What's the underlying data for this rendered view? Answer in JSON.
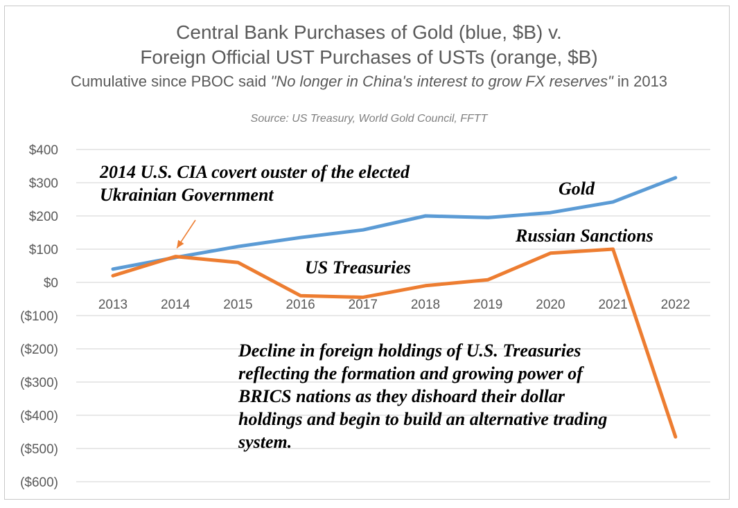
{
  "title": {
    "line1": "Central Bank Purchases of Gold (blue, $B) v.",
    "line2": "Foreign Official UST Purchases of USTs (orange, $B)",
    "subtitle_prefix": "Cumulative since PBOC said ",
    "subtitle_quote": "\"No longer in China's interest to grow FX reserves\"",
    "subtitle_suffix": " in 2013",
    "source": "Source: US Treasury, World Gold Council, FFTT"
  },
  "annotations": {
    "cia": "2014 U.S. CIA covert ouster of the elected Ukrainian Government",
    "gold": "Gold",
    "russian_sanctions": "Russian Sanctions",
    "us_treasuries": "US Treasuries",
    "brics": "Decline in foreign holdings of U.S. Treasuries reflecting the formation and growing power of BRICS nations as they dishoard their dollar holdings and begin to build an alternative trading system."
  },
  "colors": {
    "gold_series": "#5b9bd5",
    "ust_series": "#ed7d31",
    "gridline": "#d9d9d9",
    "axis_text": "#595959",
    "arrow": "#ed7d31"
  },
  "chart_data": {
    "type": "line",
    "x": [
      "2013",
      "2014",
      "2015",
      "2016",
      "2017",
      "2018",
      "2019",
      "2020",
      "2021",
      "2022"
    ],
    "y_ticks": [
      "$400",
      "$300",
      "$200",
      "$100",
      "$0",
      "($100)",
      "($200)",
      "($300)",
      "($400)",
      "($500)",
      "($600)"
    ],
    "y_tick_values": [
      400,
      300,
      200,
      100,
      0,
      -100,
      -200,
      -300,
      -400,
      -500,
      -600
    ],
    "ylim": [
      -600,
      400
    ],
    "grid": true,
    "series": [
      {
        "key": "gold",
        "color": "#5b9bd5",
        "values": [
          40,
          75,
          108,
          135,
          158,
          200,
          195,
          210,
          242,
          315
        ]
      },
      {
        "key": "ust",
        "color": "#ed7d31",
        "values": [
          20,
          78,
          60,
          -40,
          -45,
          -10,
          8,
          88,
          100,
          -465
        ]
      }
    ]
  }
}
